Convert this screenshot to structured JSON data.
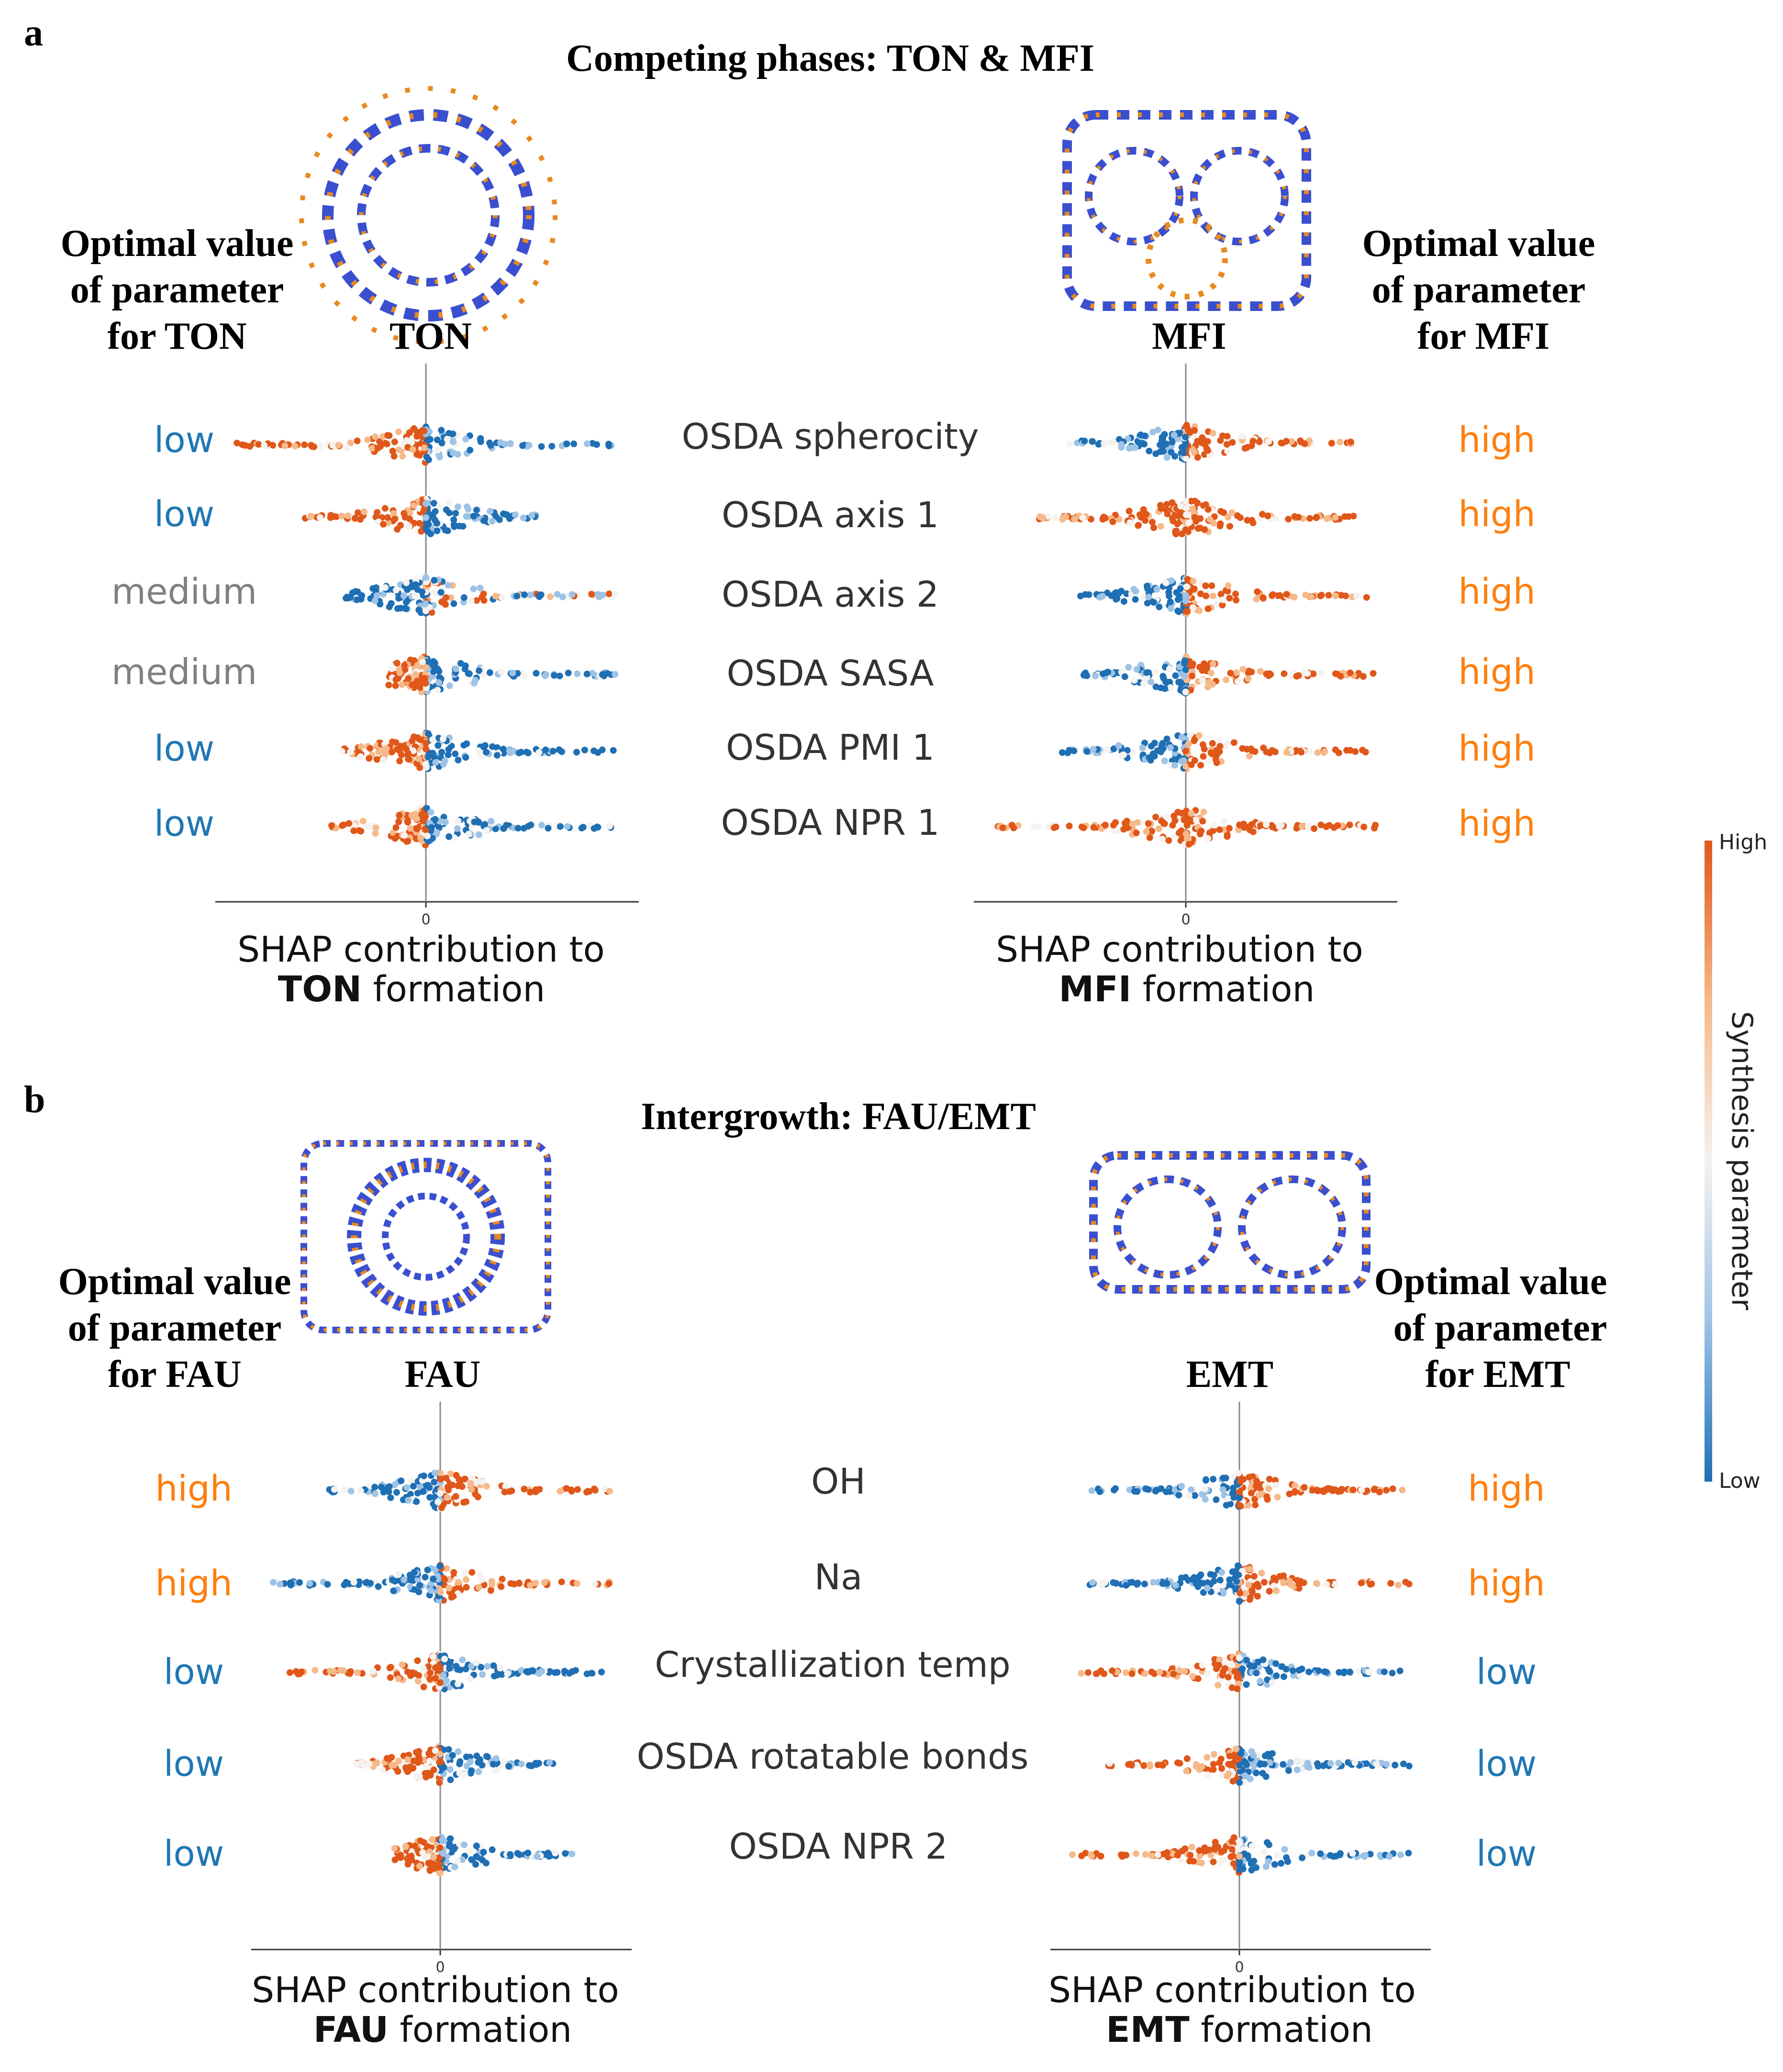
{
  "panels": [
    {
      "letter": "a",
      "title": "Competing phases: TON & MFI",
      "features": [
        "OSDA spherocity",
        "OSDA axis 1",
        "OSDA axis 2",
        "OSDA SASA",
        "OSDA PMI 1",
        "OSDA NPR 1"
      ],
      "left": {
        "framework": "TON",
        "optimal_heading": [
          "Optimal value",
          "of parameter",
          "for TON"
        ],
        "optimal_values": [
          "low",
          "low",
          "medium",
          "medium",
          "low",
          "low"
        ],
        "xlabel_line1": "SHAP contribution to",
        "xlabel_bold": "TON",
        "xlabel_rest": "formation",
        "zero_tick": "0"
      },
      "right": {
        "framework": "MFI",
        "optimal_heading": [
          "Optimal value",
          "of parameter",
          "for MFI"
        ],
        "optimal_values": [
          "high",
          "high",
          "high",
          "high",
          "high",
          "high"
        ],
        "xlabel_line1": "SHAP contribution to",
        "xlabel_bold": "MFI",
        "xlabel_rest": "formation",
        "zero_tick": "0"
      }
    },
    {
      "letter": "b",
      "title": "Intergrowth: FAU/EMT",
      "features": [
        "OH",
        "Na",
        "Crystallization temp",
        "OSDA rotatable bonds",
        "OSDA NPR 2"
      ],
      "left": {
        "framework": "FAU",
        "optimal_heading": [
          "Optimal value",
          "of parameter",
          "for FAU"
        ],
        "optimal_values": [
          "high",
          "high",
          "low",
          "low",
          "low"
        ],
        "xlabel_line1": "SHAP contribution to",
        "xlabel_bold": "FAU",
        "xlabel_rest": "formation",
        "zero_tick": "0"
      },
      "right": {
        "framework": "EMT",
        "optimal_heading": [
          "Optimal value",
          "of parameter",
          "for EMT"
        ],
        "optimal_values": [
          "high",
          "high",
          "low",
          "low",
          "low"
        ],
        "xlabel_line1": "SHAP contribution to",
        "xlabel_bold": "EMT",
        "xlabel_rest": "formation",
        "zero_tick": "0"
      }
    }
  ],
  "colorbar": {
    "label": "Synthesis parameter",
    "high_label": "High",
    "low_label": "Low",
    "colors": [
      "#1f6fb4",
      "#9ec3e6",
      "#f5f2f0",
      "#f6b98a",
      "#e0571a"
    ]
  },
  "value_colors": {
    "low": "#1f77b4",
    "medium": "#808080",
    "high": "#ff7f0e"
  },
  "chart_data": [
    {
      "type": "scatter",
      "subtype": "beeswarm",
      "framework": "TON",
      "xlabel": "SHAP contribution to TON formation",
      "ylabel": "",
      "x_ticks": [
        "0"
      ],
      "grid": false,
      "legend": "none",
      "categories": [
        "OSDA spherocity",
        "OSDA axis 1",
        "OSDA axis 2",
        "OSDA SASA",
        "OSDA PMI 1",
        "OSDA NPR 1"
      ],
      "summary": [
        {
          "feature": "OSDA spherocity",
          "left_extent": -0.9,
          "right_extent": 0.9,
          "negative_side_color": "high",
          "positive_side_color": "low"
        },
        {
          "feature": "OSDA axis 1",
          "left_extent": -0.6,
          "right_extent": 0.6,
          "negative_side_color": "high",
          "positive_side_color": "low"
        },
        {
          "feature": "OSDA axis 2",
          "left_extent": -0.4,
          "right_extent": 0.9,
          "negative_side_color": "low",
          "positive_side_color": "mixed"
        },
        {
          "feature": "OSDA SASA",
          "left_extent": -0.2,
          "right_extent": 0.9,
          "negative_side_color": "high",
          "positive_side_color": "low"
        },
        {
          "feature": "OSDA PMI 1",
          "left_extent": -0.4,
          "right_extent": 0.9,
          "negative_side_color": "high",
          "positive_side_color": "low"
        },
        {
          "feature": "OSDA NPR 1",
          "left_extent": -0.45,
          "right_extent": 0.9,
          "negative_side_color": "high",
          "positive_side_color": "low"
        }
      ]
    },
    {
      "type": "scatter",
      "subtype": "beeswarm",
      "framework": "MFI",
      "xlabel": "SHAP contribution to MFI formation",
      "ylabel": "",
      "x_ticks": [
        "0"
      ],
      "grid": false,
      "legend": "none",
      "categories": [
        "OSDA spherocity",
        "OSDA axis 1",
        "OSDA axis 2",
        "OSDA SASA",
        "OSDA PMI 1",
        "OSDA NPR 1"
      ],
      "summary": [
        {
          "feature": "OSDA spherocity",
          "left_extent": -0.6,
          "right_extent": 0.8,
          "negative_side_color": "low",
          "positive_side_color": "high"
        },
        {
          "feature": "OSDA axis 1",
          "left_extent": -0.7,
          "right_extent": 0.9,
          "negative_side_color": "high",
          "positive_side_color": "high"
        },
        {
          "feature": "OSDA axis 2",
          "left_extent": -0.5,
          "right_extent": 0.9,
          "negative_side_color": "low",
          "positive_side_color": "high"
        },
        {
          "feature": "OSDA SASA",
          "left_extent": -0.5,
          "right_extent": 0.9,
          "negative_side_color": "low",
          "positive_side_color": "high"
        },
        {
          "feature": "OSDA PMI 1",
          "left_extent": -0.6,
          "right_extent": 0.9,
          "negative_side_color": "low",
          "positive_side_color": "high"
        },
        {
          "feature": "OSDA NPR 1",
          "left_extent": -0.9,
          "right_extent": 0.9,
          "negative_side_color": "high",
          "positive_side_color": "high"
        }
      ]
    },
    {
      "type": "scatter",
      "subtype": "beeswarm",
      "framework": "FAU",
      "xlabel": "SHAP contribution to FAU formation",
      "ylabel": "",
      "x_ticks": [
        "0"
      ],
      "grid": false,
      "legend": "none",
      "categories": [
        "OH",
        "Na",
        "Crystallization temp",
        "OSDA rotatable bonds",
        "OSDA NPR 2"
      ],
      "summary": [
        {
          "feature": "OH",
          "left_extent": -0.6,
          "right_extent": 0.9,
          "negative_side_color": "low",
          "positive_side_color": "high"
        },
        {
          "feature": "Na",
          "left_extent": -0.9,
          "right_extent": 0.9,
          "negative_side_color": "low",
          "positive_side_color": "high"
        },
        {
          "feature": "Crystallization temp",
          "left_extent": -0.85,
          "right_extent": 0.9,
          "negative_side_color": "high",
          "positive_side_color": "low"
        },
        {
          "feature": "OSDA rotatable bonds",
          "left_extent": -0.45,
          "right_extent": 0.6,
          "negative_side_color": "high",
          "positive_side_color": "low"
        },
        {
          "feature": "OSDA NPR 2",
          "left_extent": -0.25,
          "right_extent": 0.7,
          "negative_side_color": "high",
          "positive_side_color": "low"
        }
      ]
    },
    {
      "type": "scatter",
      "subtype": "beeswarm",
      "framework": "EMT",
      "xlabel": "SHAP contribution to EMT formation",
      "ylabel": "",
      "x_ticks": [
        "0"
      ],
      "grid": false,
      "legend": "none",
      "categories": [
        "OH",
        "Na",
        "Crystallization temp",
        "OSDA rotatable bonds",
        "OSDA NPR 2"
      ],
      "summary": [
        {
          "feature": "OH",
          "left_extent": -0.8,
          "right_extent": 0.9,
          "negative_side_color": "low",
          "positive_side_color": "high"
        },
        {
          "feature": "Na",
          "left_extent": -0.85,
          "right_extent": 0.9,
          "negative_side_color": "low",
          "positive_side_color": "high"
        },
        {
          "feature": "Crystallization temp",
          "left_extent": -0.85,
          "right_extent": 0.9,
          "negative_side_color": "high",
          "positive_side_color": "low"
        },
        {
          "feature": "OSDA rotatable bonds",
          "left_extent": -0.7,
          "right_extent": 0.9,
          "negative_side_color": "high",
          "positive_side_color": "low"
        },
        {
          "feature": "OSDA NPR 2",
          "left_extent": -0.9,
          "right_extent": 0.9,
          "negative_side_color": "high",
          "positive_side_color": "low"
        }
      ]
    }
  ]
}
